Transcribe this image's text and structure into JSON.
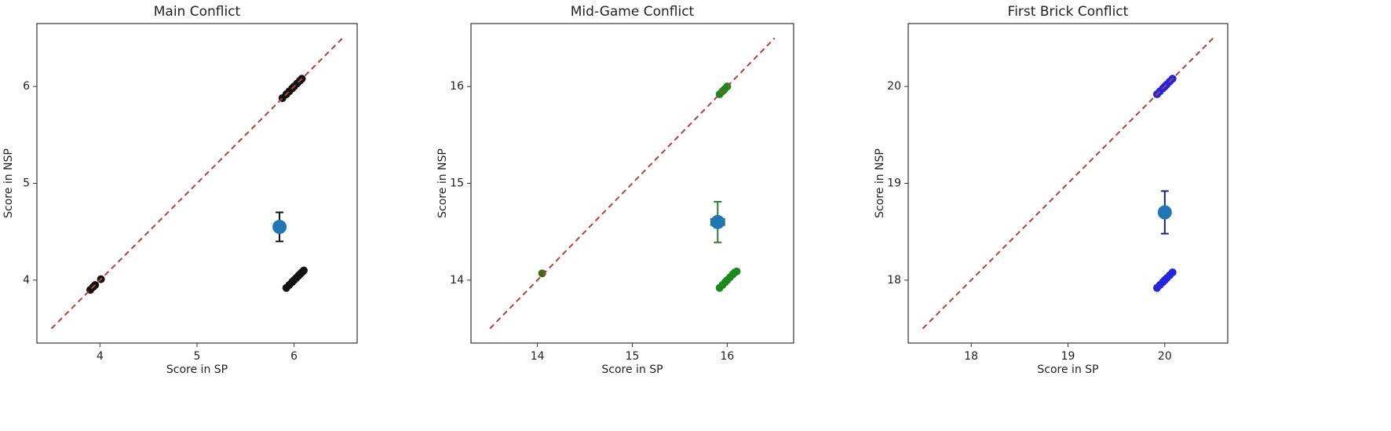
{
  "chart_data": [
    {
      "type": "scatter",
      "title": "Main Conflict",
      "xlabel": "Score in SP",
      "ylabel": "Score in NSP",
      "xlim": [
        3.35,
        6.65
      ],
      "ylim": [
        3.35,
        6.65
      ],
      "xticks": [
        4,
        5,
        6
      ],
      "yticks": [
        4,
        5,
        6
      ],
      "reference_line": {
        "x": [
          3.5,
          6.5
        ],
        "y": [
          3.5,
          6.5
        ],
        "color": "#b0413e",
        "style": "dashed"
      },
      "series": [
        {
          "color": "#111111",
          "x": [
            3.9,
            3.93,
            3.95,
            4.01,
            5.88,
            5.92,
            5.95,
            5.98,
            6.0,
            6.03,
            6.06,
            6.08
          ],
          "values": [
            3.9,
            3.93,
            3.95,
            4.01,
            5.88,
            5.92,
            5.95,
            5.98,
            6.0,
            6.03,
            6.06,
            6.08
          ]
        },
        {
          "color": "#111111",
          "x": [
            5.92,
            5.95,
            5.98,
            6.0,
            6.02,
            6.04,
            6.06,
            6.08,
            6.1
          ],
          "values": [
            3.92,
            3.95,
            3.98,
            4.0,
            4.02,
            4.04,
            4.06,
            4.08,
            4.1
          ]
        },
        {
          "color": "#1f77b4",
          "ecolor": "#111111",
          "x": [
            5.85
          ],
          "values": [
            4.55
          ],
          "xerr": [
            0.05
          ],
          "yerr": [
            0.15
          ]
        }
      ]
    },
    {
      "type": "scatter",
      "title": "Mid-Game Conflict",
      "xlabel": "Score in SP",
      "ylabel": "Score in NSP",
      "xlim": [
        13.3,
        16.7
      ],
      "ylim": [
        13.35,
        16.65
      ],
      "xticks": [
        14,
        15,
        16
      ],
      "yticks": [
        14,
        15,
        16
      ],
      "reference_line": {
        "x": [
          13.5,
          16.5
        ],
        "y": [
          13.5,
          16.5
        ],
        "color": "#b0413e",
        "style": "dashed"
      },
      "series": [
        {
          "color": "#3d6b12",
          "x": [
            14.05
          ],
          "values": [
            14.07
          ]
        },
        {
          "color": "#1a8a1a",
          "x": [
            15.92,
            15.95,
            15.97,
            16.0
          ],
          "values": [
            15.92,
            15.95,
            15.97,
            16.0
          ]
        },
        {
          "color": "#1a8a1a",
          "x": [
            15.92,
            15.95,
            15.98,
            16.0,
            16.03,
            16.06,
            16.08,
            16.1
          ],
          "values": [
            13.92,
            13.95,
            13.98,
            14.0,
            14.03,
            14.06,
            14.08,
            14.09
          ]
        },
        {
          "color": "#1f77b4",
          "ecolor": "#2e7d32",
          "x": [
            15.9
          ],
          "values": [
            14.6
          ],
          "xerr": [
            0.07
          ],
          "yerr": [
            0.21
          ]
        }
      ]
    },
    {
      "type": "scatter",
      "title": "First Brick Conflict",
      "xlabel": "Score in SP",
      "ylabel": "Score in NSP",
      "xlim": [
        17.35,
        20.65
      ],
      "ylim": [
        17.35,
        20.65
      ],
      "xticks": [
        18,
        19,
        20
      ],
      "yticks": [
        18,
        19,
        20
      ],
      "reference_line": {
        "x": [
          17.5,
          20.5
        ],
        "y": [
          17.5,
          20.5
        ],
        "color": "#b0413e",
        "style": "dashed"
      },
      "series": [
        {
          "color": "#2323e0",
          "x": [
            19.92,
            19.95,
            19.98,
            20.0,
            20.02,
            20.05,
            20.08
          ],
          "values": [
            19.92,
            19.95,
            19.98,
            20.0,
            20.02,
            20.05,
            20.08
          ]
        },
        {
          "color": "#2323e0",
          "x": [
            19.92,
            19.95,
            19.98,
            20.0,
            20.02,
            20.05,
            20.08
          ],
          "values": [
            17.92,
            17.95,
            17.98,
            18.0,
            18.02,
            18.05,
            18.08
          ]
        },
        {
          "color": "#1f77b4",
          "ecolor": "#1a237e",
          "x": [
            20.0
          ],
          "values": [
            18.7
          ],
          "yerr": [
            0.22
          ]
        }
      ]
    }
  ]
}
